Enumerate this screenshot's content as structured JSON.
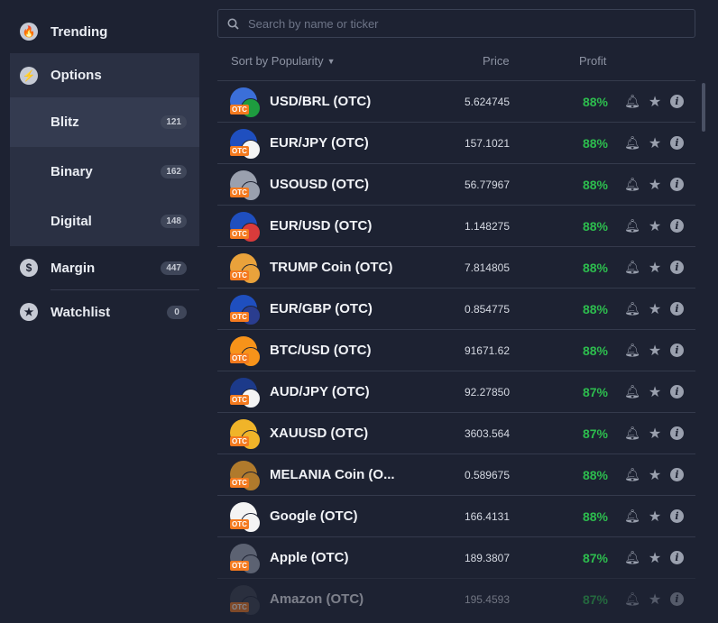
{
  "sidebar": {
    "trending": {
      "label": "Trending",
      "icon": "flame-icon"
    },
    "options": {
      "label": "Options",
      "icon": "lightning-icon"
    },
    "sub_items": [
      {
        "label": "Blitz",
        "count": "121"
      },
      {
        "label": "Binary",
        "count": "162"
      },
      {
        "label": "Digital",
        "count": "148"
      }
    ],
    "margin": {
      "label": "Margin",
      "count": "447",
      "icon": "dollar-icon"
    },
    "watchlist": {
      "label": "Watchlist",
      "count": "0",
      "icon": "star-icon"
    }
  },
  "search": {
    "placeholder": "Search by name or ticker"
  },
  "table": {
    "sort_label": "Sort by Popularity",
    "price_header": "Price",
    "profit_header": "Profit",
    "otc_badge": "OTC",
    "rows": [
      {
        "name": "USD/BRL (OTC)",
        "price": "5.624745",
        "profit": "88%",
        "c1": "#3b6fd8",
        "c2": "#1e9c3f"
      },
      {
        "name": "EUR/JPY (OTC)",
        "price": "157.1021",
        "profit": "88%",
        "c1": "#1f4fbf",
        "c2": "#f4f4f4"
      },
      {
        "name": "USOUSD (OTC)",
        "price": "56.77967",
        "profit": "88%",
        "c1": "#9aa0ae",
        "c2": "#9aa0ae"
      },
      {
        "name": "EUR/USD (OTC)",
        "price": "1.148275",
        "profit": "88%",
        "c1": "#1f4fbf",
        "c2": "#d93b3b"
      },
      {
        "name": "TRUMP Coin (OTC)",
        "price": "7.814805",
        "profit": "88%",
        "c1": "#e9a23b",
        "c2": "#e9a23b"
      },
      {
        "name": "EUR/GBP (OTC)",
        "price": "0.854775",
        "profit": "88%",
        "c1": "#1f4fbf",
        "c2": "#2a3d8f"
      },
      {
        "name": "BTC/USD (OTC)",
        "price": "91671.62",
        "profit": "88%",
        "c1": "#f7931a",
        "c2": "#f7931a"
      },
      {
        "name": "AUD/JPY (OTC)",
        "price": "92.27850",
        "profit": "87%",
        "c1": "#1c3a8a",
        "c2": "#f4f4f4"
      },
      {
        "name": "XAUUSD (OTC)",
        "price": "3603.564",
        "profit": "87%",
        "c1": "#f0b429",
        "c2": "#f0b429"
      },
      {
        "name": "MELANIA Coin (O...",
        "price": "0.589675",
        "profit": "88%",
        "c1": "#b07a2c",
        "c2": "#b07a2c"
      },
      {
        "name": "Google (OTC)",
        "price": "166.4131",
        "profit": "88%",
        "c1": "#f4f4f4",
        "c2": "#f4f4f4"
      },
      {
        "name": "Apple (OTC)",
        "price": "189.3807",
        "profit": "87%",
        "c1": "#5c6272",
        "c2": "#5c6272"
      },
      {
        "name": "Amazon (OTC)",
        "price": "195.4593",
        "profit": "87%",
        "c1": "#3a3f4d",
        "c2": "#3a3f4d"
      }
    ]
  },
  "colors": {
    "profit": "#2dbd4e",
    "otc_badge": "#f47a1f",
    "background": "#1d2232"
  }
}
